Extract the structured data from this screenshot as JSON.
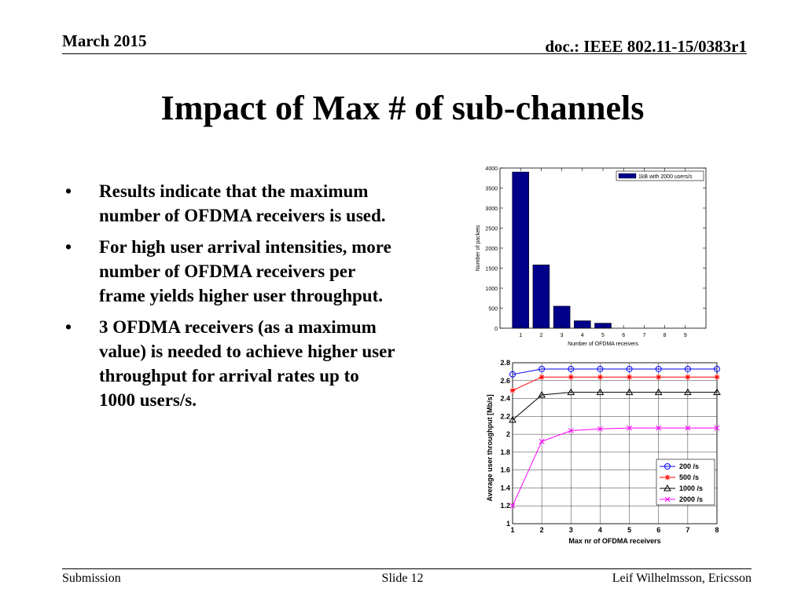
{
  "header": {
    "date": "March 2015",
    "doc_id": "doc.: IEEE 802.11-15/0383r1"
  },
  "title": "Impact of Max # of sub-channels",
  "bullets": [
    "Results indicate that the maximum number of OFDMA receivers is used.",
    "For high user arrival intensities, more number of OFDMA receivers per frame yields higher user throughput.",
    "3 OFDMA receivers (as a maximum value) is needed to achieve higher user throughput for arrival rates up to 1000 users/s."
  ],
  "bullet_symbol": "•",
  "footer": {
    "left": "Submission",
    "center": "Slide 12",
    "right": "Leif Wilhelmsson, Ericsson"
  },
  "chart_data": [
    {
      "type": "bar",
      "categories": [
        1,
        2,
        3,
        4,
        5,
        6,
        7,
        8,
        9
      ],
      "values": [
        3900,
        1580,
        550,
        185,
        125,
        0,
        0,
        0,
        0
      ],
      "xlim": [
        0,
        10
      ],
      "ylim": [
        0,
        4000
      ],
      "yticks": [
        0,
        500,
        1000,
        1500,
        2000,
        2500,
        3000,
        3500,
        4000
      ],
      "xticks": [
        1,
        2,
        3,
        4,
        5,
        6,
        7,
        8,
        9
      ],
      "xlabel": "Number of OFDMA receivers",
      "ylabel": "Number of packets",
      "series_name": "1kB with 2000 users/s",
      "bar_color": "#00008b",
      "grid": false,
      "legend_position": "top-right"
    },
    {
      "type": "line",
      "x": [
        1,
        2,
        3,
        4,
        5,
        6,
        7,
        8
      ],
      "series": [
        {
          "name": "200 /s",
          "values": [
            2.67,
            2.73,
            2.73,
            2.73,
            2.73,
            2.73,
            2.73,
            2.73
          ],
          "color": "#0000ff",
          "marker": "circle"
        },
        {
          "name": "500 /s",
          "values": [
            2.49,
            2.64,
            2.64,
            2.64,
            2.64,
            2.64,
            2.64,
            2.64
          ],
          "color": "#ff0000",
          "marker": "star"
        },
        {
          "name": "1000 /s",
          "values": [
            2.16,
            2.44,
            2.47,
            2.47,
            2.47,
            2.47,
            2.47,
            2.47
          ],
          "color": "#000000",
          "marker": "triangle"
        },
        {
          "name": "2000 /s",
          "values": [
            1.2,
            1.92,
            2.04,
            2.06,
            2.07,
            2.07,
            2.07,
            2.07
          ],
          "color": "#ff00ff",
          "marker": "x"
        }
      ],
      "xlim": [
        1,
        8
      ],
      "ylim": [
        1,
        2.8
      ],
      "yticks": [
        "1",
        "1.2",
        "1.4",
        "1.6",
        "1.8",
        "2",
        "2.2",
        "2.4",
        "2.6",
        "2.8"
      ],
      "xticks": [
        1,
        2,
        3,
        4,
        5,
        6,
        7,
        8
      ],
      "xlabel": "Max nr of OFDMA receivers",
      "ylabel": "Average user throughput [Mb/s]",
      "grid": true,
      "legend_position": "bottom-right"
    }
  ]
}
